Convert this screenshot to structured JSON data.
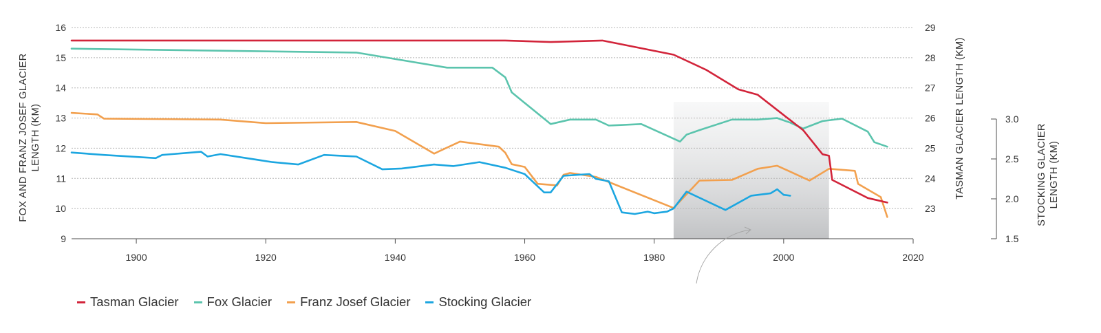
{
  "chart_data": {
    "type": "line",
    "xlabel": "",
    "x_ticks": [
      "1900",
      "1920",
      "1940",
      "1960",
      "1980",
      "2000",
      "2020"
    ],
    "xlim": [
      1890,
      2020
    ],
    "axes": {
      "left": {
        "label_lines": [
          "FOX AND FRANZ JOSEF GLACIER",
          "LENGTH (KM)"
        ],
        "ticks": [
          "16",
          "15",
          "14",
          "13",
          "12",
          "11",
          "10",
          "9"
        ],
        "ylim": [
          9,
          16
        ]
      },
      "right": {
        "label": "TASMAN GLACIER LENGTH (KM)",
        "ticks": [
          "29",
          "28",
          "27",
          "26",
          "25",
          "24",
          "23"
        ],
        "ylim": [
          22,
          29
        ]
      },
      "stocking": {
        "label_lines": [
          "STOCKING GLACIER",
          "LENGTH (KM)"
        ],
        "ticks": [
          "3.0",
          "2.5",
          "2.0",
          "1.5"
        ],
        "ylim": [
          1.5,
          3.0
        ]
      }
    },
    "grid": "horizontal dotted",
    "legend_position": "bottom-left",
    "highlight": {
      "x_from": 1983,
      "x_to": 2007
    },
    "series": [
      {
        "name": "Tasman Glacier",
        "axis": "right",
        "color": "#d2243a",
        "x": [
          1890,
          1957,
          1964,
          1972,
          1983,
          1988,
          1993,
          1996,
          2000,
          2003,
          2006,
          2007,
          2007.5,
          2013,
          2016
        ],
        "y": [
          28.57,
          28.57,
          28.52,
          28.57,
          28.1,
          27.6,
          26.95,
          26.77,
          26.1,
          25.6,
          24.8,
          24.75,
          23.95,
          23.35,
          23.2
        ]
      },
      {
        "name": "Fox Glacier",
        "axis": "left",
        "color": "#5bc4ad",
        "x": [
          1890,
          1934,
          1948,
          1955,
          1957,
          1958,
          1964,
          1967,
          1971,
          1973,
          1978,
          1984,
          1985,
          1987,
          1992,
          1996,
          1999,
          2001,
          2003,
          2006,
          2009,
          2013,
          2014,
          2016
        ],
        "y": [
          15.3,
          15.17,
          14.67,
          14.67,
          14.35,
          13.85,
          12.8,
          12.95,
          12.95,
          12.75,
          12.8,
          12.22,
          12.45,
          12.6,
          12.95,
          12.95,
          13.0,
          12.85,
          12.65,
          12.9,
          12.98,
          12.55,
          12.2,
          12.05
        ]
      },
      {
        "name": "Franz Josef Glacier",
        "axis": "left",
        "color": "#f2a04e",
        "x": [
          1890,
          1894,
          1895,
          1913,
          1920,
          1934,
          1940,
          1946,
          1950,
          1956,
          1957,
          1958,
          1960,
          1962,
          1965,
          1966,
          1967,
          1971,
          1983,
          1987,
          1992,
          1996,
          1999,
          2004,
          2007,
          2011,
          2011.5,
          2015,
          2016
        ],
        "y": [
          13.17,
          13.12,
          12.98,
          12.95,
          12.83,
          12.87,
          12.57,
          11.82,
          12.22,
          12.05,
          11.85,
          11.47,
          11.38,
          10.82,
          10.77,
          11.12,
          11.18,
          11.05,
          10.02,
          10.93,
          10.95,
          11.32,
          11.42,
          10.93,
          11.32,
          11.25,
          10.82,
          10.38,
          9.72
        ]
      },
      {
        "name": "Stocking Glacier",
        "axis": "stocking",
        "color": "#1ca6e0",
        "x": [
          1890,
          1895,
          1903,
          1904,
          1910,
          1911,
          1913,
          1921,
          1925,
          1929,
          1934,
          1938,
          1941,
          1946,
          1949,
          1953,
          1957,
          1960,
          1963,
          1964,
          1966,
          1970,
          1971,
          1973,
          1975,
          1977,
          1979,
          1980,
          1982,
          1983,
          1985,
          1991,
          1995,
          1998,
          1999,
          2000,
          2001
        ],
        "y": [
          2.58,
          2.55,
          2.51,
          2.55,
          2.59,
          2.53,
          2.56,
          2.46,
          2.43,
          2.55,
          2.53,
          2.37,
          2.38,
          2.43,
          2.41,
          2.46,
          2.39,
          2.31,
          2.08,
          2.08,
          2.29,
          2.31,
          2.25,
          2.22,
          1.83,
          1.81,
          1.84,
          1.82,
          1.84,
          1.88,
          2.09,
          1.86,
          2.04,
          2.07,
          2.12,
          2.05,
          2.04
        ]
      }
    ]
  }
}
